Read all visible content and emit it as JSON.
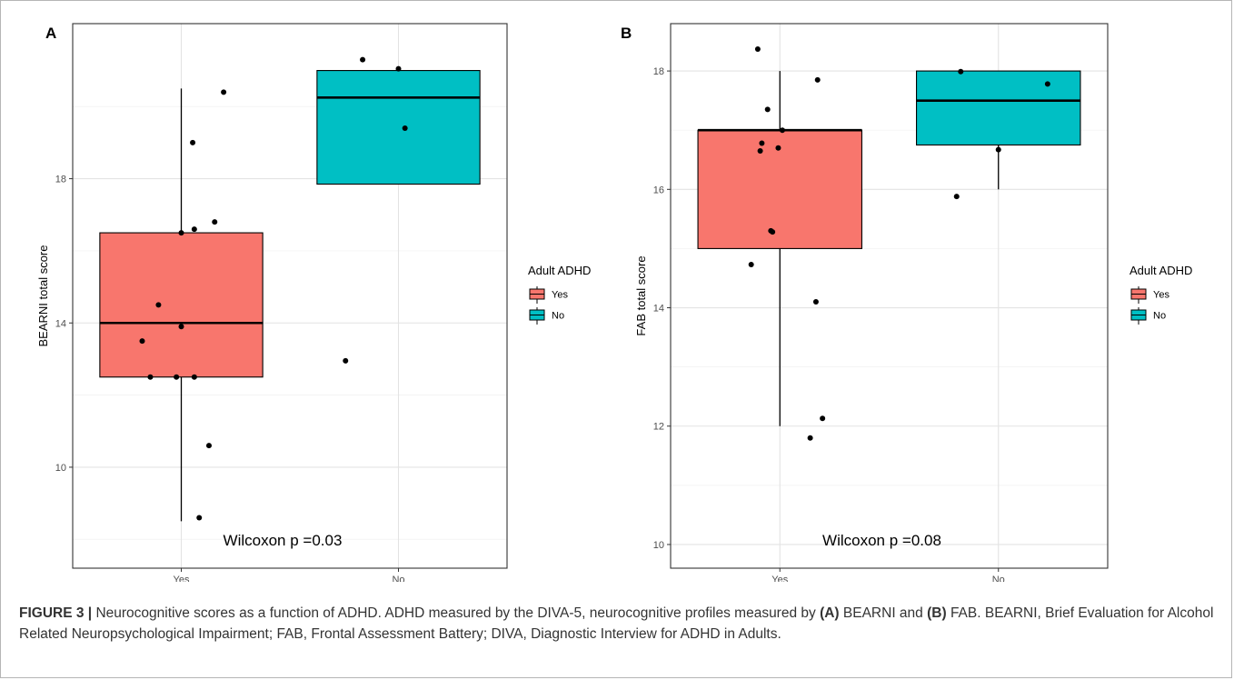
{
  "chart_data": [
    {
      "type": "box",
      "panel": "A",
      "xlabel": "Adult ADHD",
      "ylabel": "BEARNI total score",
      "categories": [
        "Yes",
        "No"
      ],
      "yticks": [
        10,
        14,
        18
      ],
      "ylim": [
        7.2,
        22.3
      ],
      "grid": true,
      "legend": {
        "title": "Adult ADHD",
        "items": [
          "Yes",
          "No"
        ],
        "position": "right"
      },
      "annotation": "Wilcoxon p =0.03",
      "boxes": [
        {
          "category": "Yes",
          "min": 8.5,
          "q1": 12.5,
          "median": 14.0,
          "q3": 16.5,
          "max": 20.5,
          "color": "#F8766D"
        },
        {
          "category": "No",
          "min": 17.85,
          "q1": 17.85,
          "median": 20.25,
          "q3": 21.0,
          "max": 21.0,
          "color": "#00BFC4"
        }
      ],
      "points": [
        {
          "x": "Yes",
          "jitter": 0.52,
          "y": 20.4
        },
        {
          "x": "Yes",
          "jitter": 0.14,
          "y": 19.0
        },
        {
          "x": "Yes",
          "jitter": 0.41,
          "y": 16.8
        },
        {
          "x": "Yes",
          "jitter": 0.16,
          "y": 16.6
        },
        {
          "x": "Yes",
          "jitter": 0.0,
          "y": 16.5
        },
        {
          "x": "Yes",
          "jitter": -0.28,
          "y": 14.5
        },
        {
          "x": "Yes",
          "jitter": 0.0,
          "y": 13.9
        },
        {
          "x": "Yes",
          "jitter": -0.48,
          "y": 13.5
        },
        {
          "x": "Yes",
          "jitter": -0.38,
          "y": 12.5
        },
        {
          "x": "Yes",
          "jitter": -0.06,
          "y": 12.5
        },
        {
          "x": "Yes",
          "jitter": 0.16,
          "y": 12.5
        },
        {
          "x": "Yes",
          "jitter": 0.34,
          "y": 10.6
        },
        {
          "x": "Yes",
          "jitter": 0.22,
          "y": 8.6
        },
        {
          "x": "No",
          "jitter": -0.44,
          "y": 21.3
        },
        {
          "x": "No",
          "jitter": 0.0,
          "y": 21.05
        },
        {
          "x": "No",
          "jitter": 0.08,
          "y": 19.4
        },
        {
          "x": "No",
          "jitter": -0.65,
          "y": 12.95
        }
      ]
    },
    {
      "type": "box",
      "panel": "B",
      "xlabel": "Adult ADHD",
      "ylabel": "FAB total score",
      "categories": [
        "Yes",
        "No"
      ],
      "yticks": [
        10,
        12,
        14,
        16,
        18
      ],
      "ylim": [
        9.6,
        18.8
      ],
      "grid": true,
      "legend": {
        "title": "Adult ADHD",
        "items": [
          "Yes",
          "No"
        ],
        "position": "right"
      },
      "annotation": "Wilcoxon p =0.08",
      "boxes": [
        {
          "category": "Yes",
          "min": 12.0,
          "q1": 15.0,
          "median": 17.0,
          "q3": 17.0,
          "max": 18.0,
          "color": "#F8766D"
        },
        {
          "category": "No",
          "min": 16.0,
          "q1": 16.75,
          "median": 17.5,
          "q3": 18.0,
          "max": 18.0,
          "color": "#00BFC4"
        }
      ],
      "points": [
        {
          "x": "Yes",
          "jitter": -0.27,
          "y": 18.37
        },
        {
          "x": "Yes",
          "jitter": 0.46,
          "y": 17.85
        },
        {
          "x": "Yes",
          "jitter": -0.15,
          "y": 17.35
        },
        {
          "x": "Yes",
          "jitter": 0.03,
          "y": 17.0
        },
        {
          "x": "Yes",
          "jitter": -0.22,
          "y": 16.78
        },
        {
          "x": "Yes",
          "jitter": -0.02,
          "y": 16.7
        },
        {
          "x": "Yes",
          "jitter": -0.24,
          "y": 16.65
        },
        {
          "x": "Yes",
          "jitter": -0.11,
          "y": 15.3
        },
        {
          "x": "Yes",
          "jitter": -0.09,
          "y": 15.28
        },
        {
          "x": "Yes",
          "jitter": -0.35,
          "y": 14.73
        },
        {
          "x": "Yes",
          "jitter": 0.44,
          "y": 14.1
        },
        {
          "x": "Yes",
          "jitter": 0.52,
          "y": 12.13
        },
        {
          "x": "Yes",
          "jitter": 0.37,
          "y": 11.8
        },
        {
          "x": "No",
          "jitter": -0.46,
          "y": 17.99
        },
        {
          "x": "No",
          "jitter": 0.6,
          "y": 17.78
        },
        {
          "x": "No",
          "jitter": 0.0,
          "y": 16.67
        },
        {
          "x": "No",
          "jitter": -0.51,
          "y": 15.88
        }
      ]
    }
  ],
  "caption": {
    "label": "FIGURE 3 |",
    "text1": " Neurocognitive scores as a function of ADHD. ADHD measured by the DIVA-5, neurocognitive profiles measured by ",
    "refA": "(A)",
    "text2": " BEARNI and ",
    "refB": "(B)",
    "text3": " FAB. BEARNI, Brief Evaluation for Alcohol Related Neuropsychological Impairment; FAB, Frontal Assessment Battery; DIVA, Diagnostic Interview for ADHD in Adults."
  }
}
